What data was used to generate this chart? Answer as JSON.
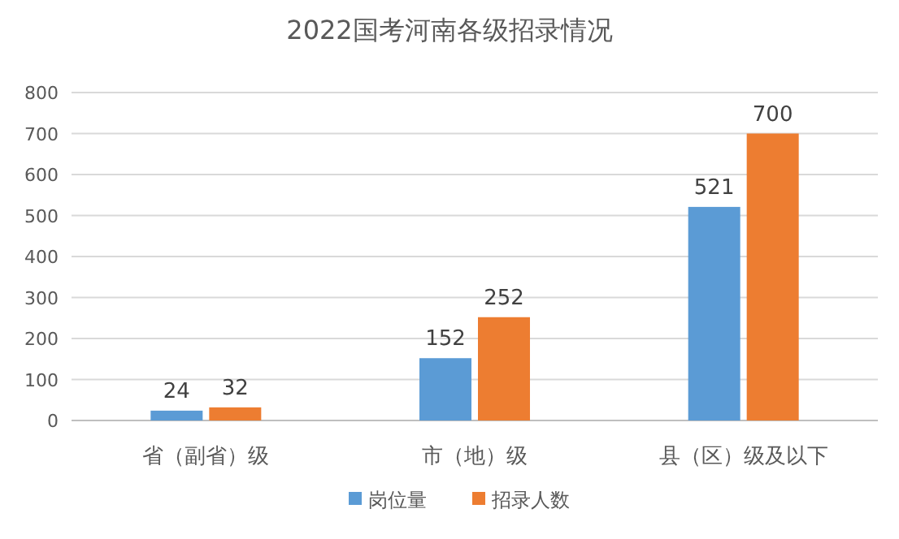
{
  "chart_data": {
    "type": "bar",
    "title": "2022国考河南各级招录情况",
    "categories": [
      "省（副省）级",
      "市（地）级",
      "县（区）级及以下"
    ],
    "series": [
      {
        "name": "岗位量",
        "color": "#5b9bd5",
        "values": [
          24,
          152,
          521
        ]
      },
      {
        "name": "招录人数",
        "color": "#ed7d31",
        "values": [
          32,
          252,
          700
        ]
      }
    ],
    "ylim": [
      0,
      800
    ],
    "yticks": [
      0,
      100,
      200,
      300,
      400,
      500,
      600,
      700,
      800
    ],
    "grid": "y",
    "legend": "bottom",
    "data_labels": true
  }
}
